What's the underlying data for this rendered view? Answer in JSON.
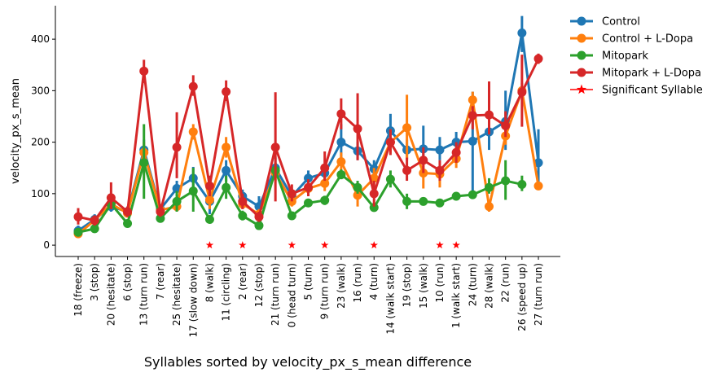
{
  "chart_data": {
    "type": "line",
    "xlabel": "Syllables sorted by velocity_px_s_mean difference",
    "ylabel": "velocity_px_s_mean",
    "ylim": [
      -22,
      465
    ],
    "yticks": [
      0,
      100,
      200,
      300,
      400
    ],
    "grid": false,
    "legend_position": "top-right outside",
    "categories": [
      "18 (freeze)",
      "3 (stop)",
      "20 (hesitate)",
      "6 (stop)",
      "13 (turn run)",
      "7 (rear)",
      "25 (hesitate)",
      "17 (slow down)",
      "8 (walk)",
      "11 (circling)",
      "2 (rear)",
      "12 (stop)",
      "21 (turn run)",
      "0 (head turn)",
      "5 (turn)",
      "9 (turn run)",
      "23 (walk)",
      "16 (run)",
      "4 (turn)",
      "14 (walk start)",
      "19 (stop)",
      "15 (walk)",
      "10 (run)",
      "1 (walk start)",
      "24 (turn)",
      "28 (walk)",
      "22 (run)",
      "26 (speed up)",
      "27 (turn run)"
    ],
    "series": [
      {
        "name": "Control",
        "color": "#1f77b4",
        "values": [
          28,
          50,
          75,
          65,
          185,
          70,
          110,
          130,
          85,
          145,
          95,
          75,
          150,
          95,
          130,
          140,
          200,
          183,
          148,
          222,
          185,
          187,
          185,
          200,
          202,
          220,
          240,
          412,
          160
        ],
        "err_low": [
          20,
          40,
          65,
          55,
          160,
          60,
          95,
          112,
          60,
          125,
          80,
          55,
          130,
          80,
          118,
          125,
          165,
          165,
          130,
          200,
          168,
          165,
          165,
          180,
          95,
          185,
          185,
          375,
          118
        ],
        "err_high": [
          38,
          60,
          88,
          75,
          205,
          80,
          125,
          152,
          110,
          165,
          108,
          95,
          170,
          110,
          145,
          155,
          235,
          200,
          165,
          255,
          205,
          232,
          210,
          220,
          298,
          260,
          300,
          445,
          225
        ]
      },
      {
        "name": "Control + L-Dopa",
        "color": "#ff7f0e",
        "values": [
          22,
          48,
          80,
          62,
          180,
          68,
          75,
          220,
          88,
          190,
          80,
          60,
          140,
          85,
          110,
          120,
          162,
          97,
          130,
          200,
          228,
          140,
          138,
          168,
          282,
          75,
          212,
          300,
          115
        ],
        "err_low": [
          15,
          40,
          70,
          55,
          160,
          58,
          65,
          205,
          70,
          170,
          70,
          50,
          125,
          75,
          100,
          105,
          145,
          75,
          110,
          180,
          165,
          110,
          112,
          150,
          260,
          65,
          195,
          290,
          108
        ],
        "err_high": [
          30,
          56,
          90,
          70,
          200,
          78,
          90,
          235,
          105,
          210,
          92,
          70,
          160,
          95,
          122,
          135,
          180,
          120,
          150,
          225,
          292,
          165,
          155,
          185,
          298,
          85,
          230,
          315,
          122
        ]
      },
      {
        "name": "Mitopark",
        "color": "#2ca02c",
        "values": [
          25,
          32,
          80,
          42,
          160,
          52,
          85,
          105,
          50,
          112,
          57,
          38,
          145,
          57,
          82,
          87,
          137,
          112,
          73,
          128,
          85,
          85,
          82,
          95,
          98,
          112,
          125,
          118,
          null
        ],
        "err_low": [
          20,
          25,
          70,
          35,
          90,
          45,
          65,
          65,
          43,
          90,
          48,
          30,
          130,
          50,
          75,
          78,
          128,
          100,
          65,
          112,
          70,
          78,
          75,
          88,
          90,
          100,
          88,
          105,
          null
        ],
        "err_high": [
          30,
          40,
          90,
          50,
          235,
          60,
          105,
          150,
          58,
          135,
          67,
          45,
          160,
          65,
          90,
          96,
          147,
          125,
          82,
          145,
          100,
          92,
          90,
          102,
          105,
          130,
          165,
          135,
          null
        ]
      },
      {
        "name": "Mitopark + L-Dopa",
        "color": "#d62728",
        "values": [
          55,
          48,
          92,
          65,
          338,
          65,
          190,
          308,
          115,
          298,
          85,
          55,
          190,
          100,
          112,
          150,
          255,
          226,
          100,
          200,
          145,
          165,
          145,
          180,
          252,
          253,
          232,
          297,
          362
        ],
        "err_low": [
          40,
          38,
          70,
          55,
          315,
          55,
          130,
          290,
          95,
          280,
          70,
          45,
          85,
          85,
          95,
          125,
          225,
          165,
          75,
          175,
          125,
          140,
          125,
          160,
          225,
          215,
          210,
          230,
          352
        ],
        "err_high": [
          72,
          58,
          122,
          75,
          360,
          78,
          258,
          330,
          135,
          320,
          100,
          65,
          297,
          118,
          128,
          182,
          285,
          295,
          125,
          225,
          170,
          190,
          165,
          200,
          270,
          318,
          260,
          370,
          372
        ]
      }
    ],
    "significant_syllables": {
      "name": "Significant Syllable",
      "color": "#ff0000",
      "marker_value": 0,
      "categories": [
        "8 (walk)",
        "2 (rear)",
        "0 (head turn)",
        "9 (turn run)",
        "4 (turn)",
        "10 (run)",
        "1 (walk start)"
      ]
    }
  }
}
